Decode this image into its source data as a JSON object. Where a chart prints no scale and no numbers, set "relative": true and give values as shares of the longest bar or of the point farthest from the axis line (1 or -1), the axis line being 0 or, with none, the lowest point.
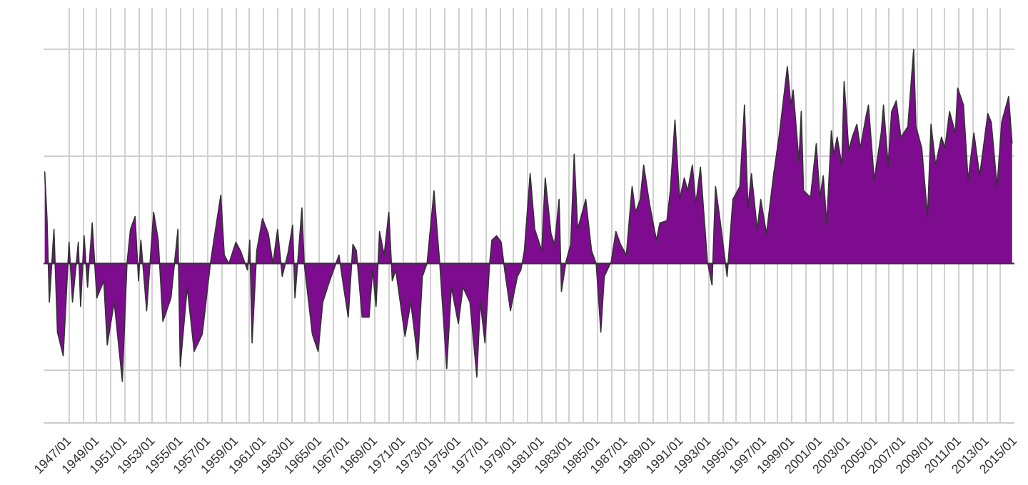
{
  "chart_data": {
    "type": "area",
    "relative": true,
    "grid": true,
    "xlim": [
      "1945-03",
      "2015-01"
    ],
    "xticks": [
      {
        "value": "1947-01",
        "label": "1947/01"
      },
      {
        "value": "1948-01",
        "label": null
      },
      {
        "value": "1949-01",
        "label": "1949/01"
      },
      {
        "value": "1950-01",
        "label": null
      },
      {
        "value": "1951-01",
        "label": "1951/01"
      },
      {
        "value": "1952-01",
        "label": null
      },
      {
        "value": "1953-01",
        "label": "1953/01"
      },
      {
        "value": "1954-01",
        "label": null
      },
      {
        "value": "1955-01",
        "label": "1955/01"
      },
      {
        "value": "1956-01",
        "label": null
      },
      {
        "value": "1957-01",
        "label": "1957/01"
      },
      {
        "value": "1958-01",
        "label": null
      },
      {
        "value": "1959-01",
        "label": "1959/01"
      },
      {
        "value": "1960-01",
        "label": null
      },
      {
        "value": "1961-01",
        "label": "1961/01"
      },
      {
        "value": "1962-01",
        "label": null
      },
      {
        "value": "1963-01",
        "label": "1963/01"
      },
      {
        "value": "1964-01",
        "label": null
      },
      {
        "value": "1965-01",
        "label": "1965/01"
      },
      {
        "value": "1966-01",
        "label": null
      },
      {
        "value": "1967-01",
        "label": "1967/01"
      },
      {
        "value": "1968-01",
        "label": null
      },
      {
        "value": "1969-01",
        "label": "1969/01"
      },
      {
        "value": "1970-01",
        "label": null
      },
      {
        "value": "1971-01",
        "label": "1971/01"
      },
      {
        "value": "1972-01",
        "label": null
      },
      {
        "value": "1973-01",
        "label": "1973/01"
      },
      {
        "value": "1974-01",
        "label": null
      },
      {
        "value": "1975-01",
        "label": "1975/01"
      },
      {
        "value": "1976-01",
        "label": null
      },
      {
        "value": "1977-01",
        "label": "1977/01"
      },
      {
        "value": "1978-01",
        "label": null
      },
      {
        "value": "1979-01",
        "label": "1979/01"
      },
      {
        "value": "1980-01",
        "label": null
      },
      {
        "value": "1981-01",
        "label": "1981/01"
      },
      {
        "value": "1982-01",
        "label": null
      },
      {
        "value": "1983-01",
        "label": "1983/01"
      },
      {
        "value": "1984-01",
        "label": null
      },
      {
        "value": "1985-01",
        "label": "1985/01"
      },
      {
        "value": "1986-01",
        "label": null
      },
      {
        "value": "1987-01",
        "label": "1987/01"
      },
      {
        "value": "1988-01",
        "label": null
      },
      {
        "value": "1989-01",
        "label": "1989/01"
      },
      {
        "value": "1990-01",
        "label": null
      },
      {
        "value": "1991-01",
        "label": "1991/01"
      },
      {
        "value": "1992-01",
        "label": null
      },
      {
        "value": "1993-01",
        "label": "1993/01"
      },
      {
        "value": "1994-01",
        "label": null
      },
      {
        "value": "1995-01",
        "label": "1995/01"
      },
      {
        "value": "1996-01",
        "label": null
      },
      {
        "value": "1997-01",
        "label": "1997/01"
      },
      {
        "value": "1998-01",
        "label": null
      },
      {
        "value": "1999-01",
        "label": "1999/01"
      },
      {
        "value": "2000-01",
        "label": null
      },
      {
        "value": "2001-01",
        "label": "2001/01"
      },
      {
        "value": "2002-01",
        "label": null
      },
      {
        "value": "2003-01",
        "label": "2003/01"
      },
      {
        "value": "2004-01",
        "label": null
      },
      {
        "value": "2005-01",
        "label": "2005/01"
      },
      {
        "value": "2006-01",
        "label": null
      },
      {
        "value": "2007-01",
        "label": "2007/01"
      },
      {
        "value": "2008-01",
        "label": null
      },
      {
        "value": "2009-01",
        "label": "2009/01"
      },
      {
        "value": "2010-01",
        "label": null
      },
      {
        "value": "2011-01",
        "label": "2011/01"
      },
      {
        "value": "2012-01",
        "label": null
      },
      {
        "value": "2013-01",
        "label": "2013/01"
      },
      {
        "value": "2014-01",
        "label": null
      },
      {
        "value": "2015-01",
        "label": "2015/01"
      }
    ],
    "series": [
      {
        "color": "#7d0c8e",
        "x": [
          "1945-04",
          "1945-06",
          "1945-08",
          "1945-12",
          "1946-03",
          "1946-08",
          "1947-01",
          "1947-04",
          "1947-09",
          "1947-11",
          "1948-02",
          "1948-05",
          "1948-09",
          "1949-01",
          "1949-07",
          "1949-10",
          "1950-04",
          "1950-11",
          "1951-03",
          "1951-06",
          "1951-10",
          "1952-01",
          "1952-03",
          "1952-08",
          "1953-02",
          "1953-06",
          "1953-10",
          "1954-05",
          "1954-11",
          "1955-01",
          "1955-07",
          "1956-01",
          "1956-08",
          "1957-03",
          "1957-06",
          "1957-12",
          "1958-03",
          "1958-07",
          "1959-01",
          "1959-05",
          "1959-11",
          "1960-01",
          "1960-03",
          "1960-07",
          "1960-12",
          "1961-05",
          "1961-09",
          "1962-01",
          "1962-05",
          "1962-10",
          "1963-02",
          "1963-04",
          "1963-10",
          "1963-12",
          "1964-07",
          "1964-12",
          "1965-04",
          "1965-10",
          "1966-06",
          "1966-10",
          "1967-02",
          "1967-06",
          "1967-09",
          "1968-02",
          "1968-08",
          "1968-11",
          "1969-02",
          "1969-05",
          "1969-09",
          "1970-01",
          "1970-04",
          "1970-07",
          "1971-03",
          "1971-08",
          "1972-02",
          "1972-06",
          "1972-10",
          "1973-04",
          "1973-09",
          "1974-03",
          "1974-07",
          "1975-01",
          "1975-05",
          "1975-11",
          "1976-05",
          "1976-08",
          "1976-12",
          "1977-04",
          "1977-06",
          "1977-10",
          "1978-02",
          "1978-05",
          "1978-10",
          "1979-04",
          "1979-07",
          "1979-10",
          "1980-03",
          "1980-07",
          "1981-01",
          "1981-04",
          "1981-09",
          "1981-12",
          "1982-04",
          "1982-06",
          "1982-10",
          "1983-02",
          "1983-05",
          "1983-08",
          "1983-12",
          "1984-03",
          "1984-08",
          "1984-12",
          "1985-04",
          "1985-07",
          "1986-01",
          "1986-05",
          "1986-09",
          "1987-02",
          "1987-07",
          "1987-10",
          "1988-02",
          "1988-05",
          "1988-10",
          "1989-04",
          "1989-07",
          "1990-01",
          "1990-04",
          "1990-08",
          "1990-12",
          "1991-04",
          "1991-07",
          "1991-11",
          "1992-02",
          "1992-06",
          "1992-12",
          "1993-04",
          "1993-07",
          "1993-11",
          "1994-05",
          "1994-10",
          "1995-04",
          "1995-08",
          "1995-11",
          "1996-02",
          "1996-07",
          "1996-10",
          "1997-03",
          "1997-09",
          "1998-02",
          "1998-09",
          "1998-12",
          "1999-02",
          "1999-07",
          "1999-09",
          "1999-11",
          "2000-05",
          "2000-10",
          "2001-01",
          "2001-04",
          "2001-07",
          "2001-11",
          "2002-01",
          "2002-04",
          "2002-08",
          "2002-10",
          "2003-02",
          "2003-05",
          "2003-09",
          "2003-12",
          "2004-05",
          "2004-07",
          "2004-12",
          "2005-06",
          "2005-08",
          "2005-12",
          "2006-03",
          "2006-07",
          "2006-11",
          "2007-05",
          "2007-10",
          "2007-12",
          "2008-05",
          "2008-10",
          "2009-01",
          "2009-05",
          "2009-10",
          "2010-01",
          "2010-05",
          "2010-10",
          "2010-12",
          "2011-05",
          "2011-09",
          "2012-02",
          "2012-07",
          "2013-02",
          "2013-05",
          "2013-10",
          "2014-02",
          "2014-08",
          "2014-11"
        ],
        "values": [
          0.43,
          0.21,
          -0.18,
          0.16,
          -0.32,
          -0.43,
          0.1,
          -0.18,
          0.1,
          -0.2,
          0.13,
          -0.11,
          0.19,
          -0.16,
          -0.08,
          -0.38,
          -0.18,
          -0.55,
          0,
          0.16,
          0.22,
          -0.08,
          0.11,
          -0.22,
          0.24,
          0.11,
          -0.27,
          -0.16,
          0.16,
          -0.48,
          -0.11,
          -0.41,
          -0.33,
          0,
          0.11,
          0.32,
          0.04,
          0,
          0.1,
          0.06,
          -0.03,
          0.11,
          -0.37,
          0.06,
          0.21,
          0.14,
          0,
          0.16,
          -0.06,
          0.05,
          0.18,
          -0.16,
          0.26,
          0,
          -0.33,
          -0.41,
          -0.18,
          -0.08,
          0.04,
          -0.11,
          -0.25,
          0.09,
          0.06,
          -0.25,
          -0.25,
          -0.03,
          -0.2,
          0.15,
          0.04,
          0.24,
          -0.08,
          -0.03,
          -0.34,
          -0.18,
          -0.45,
          -0.06,
          0,
          0.34,
          0,
          -0.49,
          -0.11,
          -0.28,
          -0.11,
          -0.18,
          -0.53,
          -0.18,
          -0.37,
          0,
          0.11,
          0.13,
          0.1,
          -0.03,
          -0.22,
          -0.06,
          -0.03,
          0.06,
          0.42,
          0.16,
          0.06,
          0.4,
          0.14,
          0.09,
          0.3,
          -0.13,
          0.01,
          0.09,
          0.51,
          0.16,
          0.24,
          0.3,
          0.06,
          0,
          -0.32,
          -0.06,
          0.01,
          0.15,
          0.09,
          0.04,
          0.36,
          0.24,
          0.3,
          0.46,
          0.28,
          0.11,
          0.19,
          0.2,
          0.34,
          0.67,
          0.3,
          0.4,
          0.34,
          0.46,
          0.28,
          0.45,
          0.01,
          -0.1,
          0.36,
          0.2,
          -0.06,
          0.3,
          0.36,
          0.74,
          0.26,
          0.42,
          0.16,
          0.3,
          0.14,
          0.41,
          0.6,
          0.92,
          0.74,
          0.81,
          0.48,
          0.71,
          0.34,
          0.31,
          0.56,
          0.31,
          0.41,
          0.19,
          0.62,
          0.51,
          0.59,
          0.46,
          0.85,
          0.53,
          0.59,
          0.65,
          0.54,
          0.69,
          0.74,
          0.39,
          0.61,
          0.74,
          0.46,
          0.71,
          0.76,
          0.59,
          0.64,
          1.0,
          0.64,
          0.54,
          0.22,
          0.65,
          0.46,
          0.59,
          0.54,
          0.71,
          0.61,
          0.82,
          0.74,
          0.39,
          0.61,
          0.41,
          0.7,
          0.66,
          0.36,
          0.66,
          0.78,
          0.56
        ]
      }
    ]
  }
}
